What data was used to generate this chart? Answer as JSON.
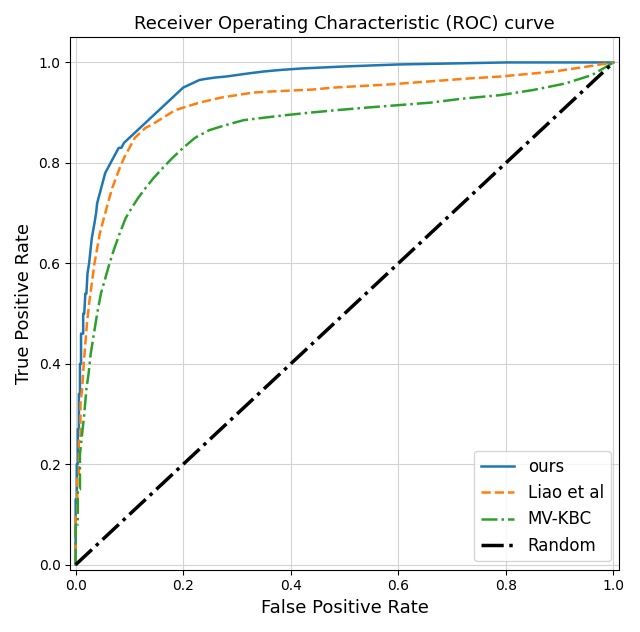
{
  "title": "Receiver Operating Characteristic (ROC) curve",
  "xlabel": "False Positive Rate",
  "ylabel": "True Positive Rate",
  "xlim": [
    -0.01,
    1.01
  ],
  "ylim": [
    -0.01,
    1.05
  ],
  "xticks": [
    0.0,
    0.2,
    0.4,
    0.6,
    0.8,
    1.0
  ],
  "yticks": [
    0.0,
    0.2,
    0.4,
    0.6,
    0.8,
    1.0
  ],
  "curves": {
    "ours": {
      "color": "#1f77b4",
      "linestyle": "-",
      "linewidth": 1.8,
      "label": "ours",
      "fpr": [
        0.0,
        0.0,
        0.002,
        0.002,
        0.004,
        0.004,
        0.006,
        0.006,
        0.008,
        0.008,
        0.01,
        0.01,
        0.012,
        0.014,
        0.014,
        0.016,
        0.018,
        0.02,
        0.022,
        0.025,
        0.028,
        0.03,
        0.035,
        0.038,
        0.04,
        0.045,
        0.05,
        0.055,
        0.06,
        0.065,
        0.07,
        0.075,
        0.08,
        0.085,
        0.09,
        0.095,
        0.1,
        0.105,
        0.11,
        0.115,
        0.12,
        0.125,
        0.13,
        0.14,
        0.15,
        0.16,
        0.17,
        0.18,
        0.19,
        0.2,
        0.21,
        0.22,
        0.23,
        0.24,
        0.26,
        0.28,
        0.3,
        0.32,
        0.35,
        0.38,
        0.42,
        0.46,
        0.5,
        0.55,
        0.6,
        0.65,
        0.7,
        0.75,
        0.8,
        0.85,
        0.9,
        0.95,
        1.0
      ],
      "tpr": [
        0.0,
        0.13,
        0.13,
        0.2,
        0.2,
        0.27,
        0.27,
        0.34,
        0.34,
        0.4,
        0.4,
        0.46,
        0.46,
        0.46,
        0.5,
        0.5,
        0.54,
        0.54,
        0.58,
        0.6,
        0.63,
        0.65,
        0.68,
        0.7,
        0.72,
        0.74,
        0.76,
        0.78,
        0.79,
        0.8,
        0.81,
        0.82,
        0.83,
        0.83,
        0.84,
        0.845,
        0.85,
        0.855,
        0.86,
        0.865,
        0.87,
        0.875,
        0.88,
        0.89,
        0.9,
        0.91,
        0.92,
        0.93,
        0.94,
        0.95,
        0.955,
        0.96,
        0.965,
        0.967,
        0.97,
        0.972,
        0.975,
        0.978,
        0.982,
        0.985,
        0.988,
        0.99,
        0.992,
        0.994,
        0.996,
        0.997,
        0.998,
        0.999,
        1.0,
        1.0,
        1.0,
        1.0,
        1.0
      ]
    },
    "liao": {
      "color": "#ff7f0e",
      "linestyle": "--",
      "linewidth": 1.8,
      "label": "Liao et al",
      "fpr": [
        0.0,
        0.0,
        0.003,
        0.003,
        0.006,
        0.006,
        0.009,
        0.009,
        0.012,
        0.015,
        0.018,
        0.021,
        0.025,
        0.03,
        0.035,
        0.04,
        0.045,
        0.05,
        0.055,
        0.06,
        0.068,
        0.075,
        0.082,
        0.09,
        0.1,
        0.11,
        0.12,
        0.13,
        0.14,
        0.155,
        0.17,
        0.185,
        0.2,
        0.215,
        0.23,
        0.25,
        0.27,
        0.3,
        0.33,
        0.36,
        0.4,
        0.44,
        0.48,
        0.53,
        0.58,
        0.63,
        0.68,
        0.73,
        0.79,
        0.84,
        0.89,
        0.94,
        1.0
      ],
      "tpr": [
        0.0,
        0.1,
        0.1,
        0.18,
        0.18,
        0.25,
        0.25,
        0.32,
        0.35,
        0.4,
        0.44,
        0.48,
        0.52,
        0.56,
        0.6,
        0.63,
        0.66,
        0.68,
        0.7,
        0.72,
        0.75,
        0.77,
        0.79,
        0.81,
        0.83,
        0.85,
        0.86,
        0.87,
        0.875,
        0.885,
        0.895,
        0.905,
        0.91,
        0.915,
        0.92,
        0.925,
        0.93,
        0.935,
        0.94,
        0.942,
        0.944,
        0.946,
        0.95,
        0.953,
        0.956,
        0.96,
        0.964,
        0.968,
        0.972,
        0.977,
        0.982,
        0.99,
        1.0
      ]
    },
    "mvkbc": {
      "color": "#2ca02c",
      "linestyle": "-.",
      "linewidth": 1.8,
      "label": "MV-KBC",
      "fpr": [
        0.0,
        0.0,
        0.004,
        0.004,
        0.008,
        0.008,
        0.012,
        0.016,
        0.02,
        0.024,
        0.028,
        0.034,
        0.04,
        0.047,
        0.055,
        0.063,
        0.072,
        0.082,
        0.093,
        0.104,
        0.116,
        0.13,
        0.145,
        0.162,
        0.18,
        0.2,
        0.222,
        0.248,
        0.278,
        0.312,
        0.35,
        0.39,
        0.435,
        0.485,
        0.54,
        0.6,
        0.66,
        0.72,
        0.79,
        0.85,
        0.91,
        0.96,
        1.0
      ],
      "tpr": [
        0.0,
        0.08,
        0.08,
        0.15,
        0.15,
        0.22,
        0.26,
        0.3,
        0.35,
        0.38,
        0.42,
        0.46,
        0.5,
        0.54,
        0.57,
        0.6,
        0.63,
        0.66,
        0.69,
        0.71,
        0.73,
        0.75,
        0.77,
        0.79,
        0.81,
        0.83,
        0.85,
        0.865,
        0.875,
        0.885,
        0.89,
        0.895,
        0.9,
        0.905,
        0.91,
        0.915,
        0.92,
        0.928,
        0.935,
        0.945,
        0.958,
        0.975,
        1.0
      ]
    },
    "random": {
      "color": "#000000",
      "linestyle": "-.",
      "linewidth": 2.5,
      "label": "Random",
      "fpr": [
        0.0,
        1.0
      ],
      "tpr": [
        0.0,
        1.0
      ]
    }
  },
  "legend_loc": "lower right",
  "grid": true,
  "background_color": "#ffffff"
}
